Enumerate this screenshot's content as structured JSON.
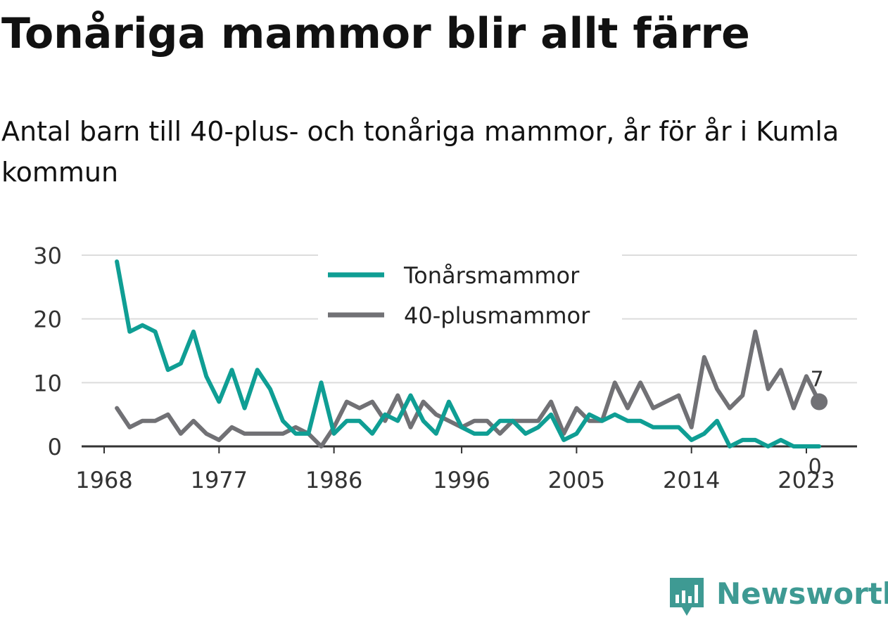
{
  "header": {
    "title": "Tonåriga mammor blir allt färre",
    "subtitle": "Antal barn till 40-plus- och tonåriga mammor, år för år i Kumla kommun"
  },
  "brand": {
    "name": "Newsworthy",
    "color": "#3e9a93"
  },
  "chart_data": {
    "type": "line",
    "x": [
      1969,
      1970,
      1971,
      1972,
      1973,
      1974,
      1975,
      1976,
      1977,
      1978,
      1979,
      1980,
      1981,
      1982,
      1983,
      1984,
      1985,
      1986,
      1987,
      1988,
      1989,
      1990,
      1991,
      1992,
      1993,
      1994,
      1995,
      1996,
      1997,
      1998,
      1999,
      2000,
      2001,
      2002,
      2003,
      2004,
      2005,
      2006,
      2007,
      2008,
      2009,
      2010,
      2011,
      2012,
      2013,
      2014,
      2015,
      2016,
      2017,
      2018,
      2019,
      2020,
      2021,
      2022,
      2023,
      2024
    ],
    "series": [
      {
        "name": "Tonårsmammor",
        "color": "#0f9e94",
        "values": [
          29,
          18,
          19,
          18,
          12,
          13,
          18,
          11,
          7,
          12,
          6,
          12,
          9,
          4,
          2,
          2,
          10,
          2,
          4,
          4,
          2,
          5,
          4,
          8,
          4,
          2,
          7,
          3,
          2,
          2,
          4,
          4,
          2,
          3,
          5,
          1,
          2,
          5,
          4,
          5,
          4,
          4,
          3,
          3,
          3,
          1,
          2,
          4,
          0,
          1,
          1,
          0,
          1,
          0,
          0,
          0
        ],
        "end_label": "0"
      },
      {
        "name": "40-plusmammor",
        "color": "#717175",
        "values": [
          6,
          3,
          4,
          4,
          5,
          2,
          4,
          2,
          1,
          3,
          2,
          2,
          2,
          2,
          3,
          2,
          0,
          3,
          7,
          6,
          7,
          4,
          8,
          3,
          7,
          5,
          4,
          3,
          4,
          4,
          2,
          4,
          4,
          4,
          7,
          2,
          6,
          4,
          4,
          10,
          6,
          10,
          6,
          7,
          8,
          3,
          14,
          9,
          6,
          8,
          18,
          9,
          12,
          6,
          11,
          7
        ],
        "end_label": "7"
      }
    ],
    "x_ticks": [
      1968,
      1977,
      1986,
      1996,
      2005,
      2014,
      2023
    ],
    "y_ticks": [
      0,
      10,
      20,
      30
    ],
    "xlim": [
      1968,
      2025
    ],
    "ylim": [
      0,
      30
    ],
    "grid": true,
    "legend_position": "top-center"
  }
}
